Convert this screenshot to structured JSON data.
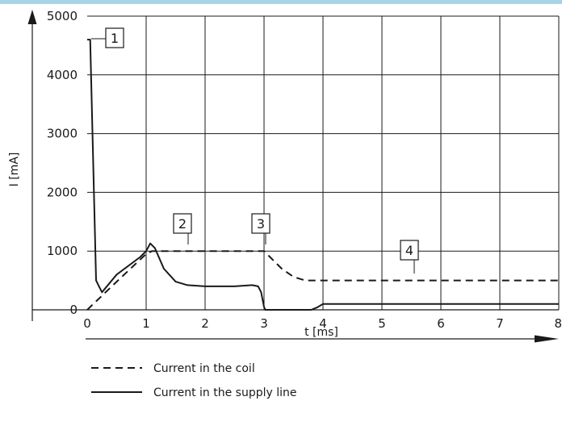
{
  "colors": {
    "accent_bar": "#a8d4e6",
    "ink": "#1a1a1a",
    "grid": "#1a1a1a"
  },
  "chart_data": {
    "type": "line",
    "xlabel": "t [ms]",
    "ylabel": "I [mA]",
    "xlim": [
      0,
      8
    ],
    "ylim": [
      0,
      5000
    ],
    "x_ticks": [
      "0",
      "1",
      "2",
      "3",
      "4",
      "5",
      "6",
      "7",
      "8"
    ],
    "y_ticks": [
      "0",
      "1000",
      "2000",
      "3000",
      "4000",
      "5000"
    ],
    "grid": true,
    "legend_position": "bottom-left",
    "series": [
      {
        "name": "Current in the coil",
        "style": "dashed",
        "x": [
          0,
          0.5,
          1.0,
          1.1,
          2.0,
          2.9,
          3.0,
          3.1,
          3.3,
          3.5,
          3.7,
          4.0,
          8.0
        ],
        "y": [
          0,
          480,
          950,
          1000,
          1000,
          1000,
          1000,
          900,
          700,
          560,
          500,
          500,
          500
        ]
      },
      {
        "name": "Current in the supply line",
        "style": "solid",
        "x": [
          0,
          0.05,
          0.15,
          0.2,
          0.25,
          0.5,
          0.9,
          1.0,
          1.07,
          1.15,
          1.3,
          1.5,
          1.7,
          2.0,
          2.5,
          2.8,
          2.9,
          2.95,
          3.0,
          3.02,
          3.05,
          3.8,
          3.9,
          4.0,
          8.0
        ],
        "y": [
          4600,
          4600,
          500,
          400,
          300,
          600,
          900,
          1000,
          1130,
          1050,
          700,
          480,
          420,
          400,
          400,
          420,
          400,
          300,
          50,
          0,
          0,
          0,
          40,
          100,
          100
        ]
      }
    ],
    "annotations": [
      {
        "label": "1",
        "x": 0.1,
        "y": 4600
      },
      {
        "label": "2",
        "x": 1.7,
        "y": 1000
      },
      {
        "label": "3",
        "x": 3.0,
        "y": 1000
      },
      {
        "label": "4",
        "x": 5.5,
        "y": 500
      }
    ]
  }
}
